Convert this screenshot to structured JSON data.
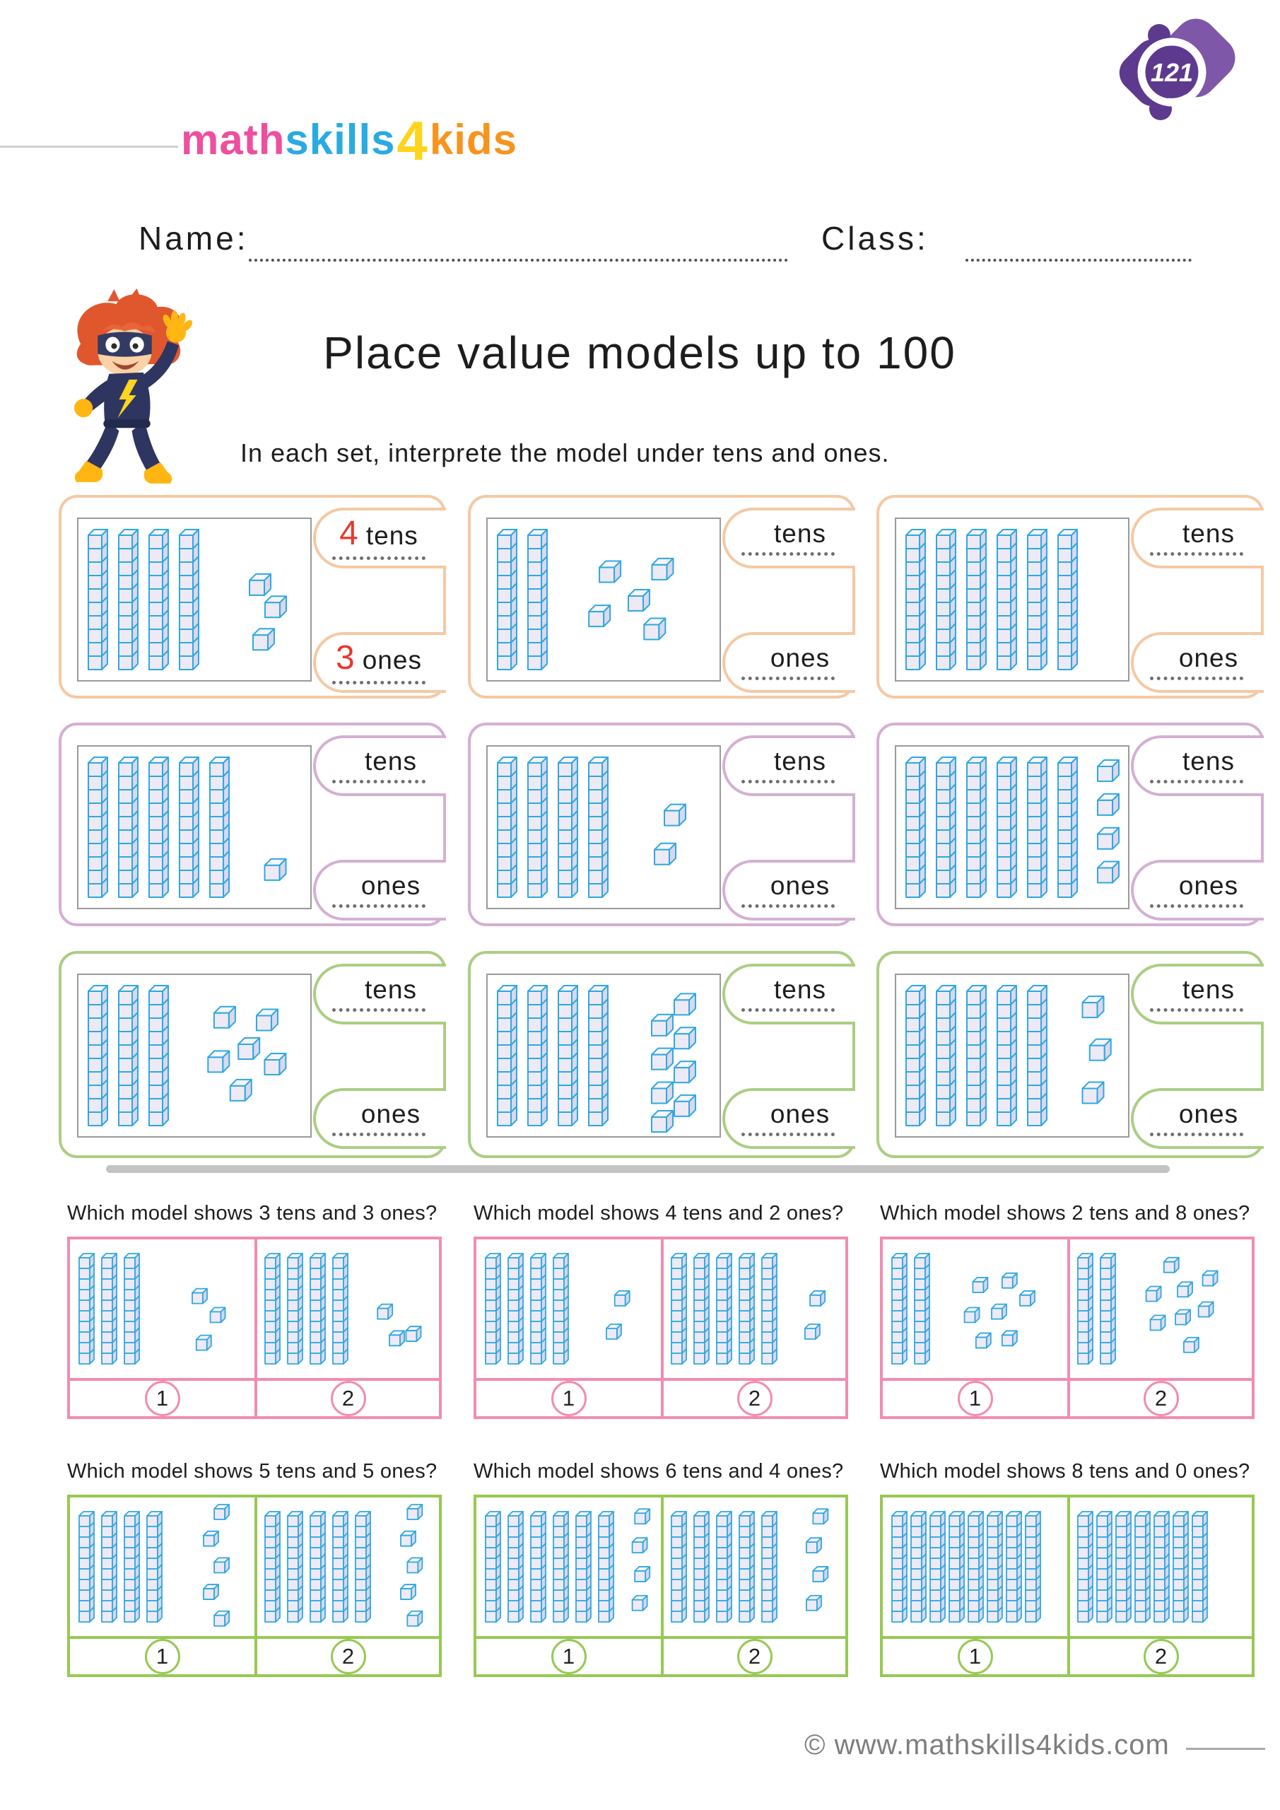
{
  "page": {
    "number": "121"
  },
  "colors": {
    "peach": "#f4c9a3",
    "lilac": "#d4afd3",
    "green_box": "#abce83",
    "pink": "#f28cb1",
    "green_q": "#96c953",
    "rod_stroke": "#2fa8e0",
    "rod_front": "#edeaf6",
    "rod_top": "#f7f5fd",
    "rod_side": "#dbd7ec",
    "answer_red": "#e5392f",
    "divider": "#c3c3c3",
    "footer_gray": "#7e7e7e",
    "badge_dark": "#5d3a8e",
    "badge_light": "#7e57a8"
  },
  "logo": {
    "parts": [
      {
        "text": "math",
        "color": "#ee4f9e"
      },
      {
        "text": "skills",
        "color": "#29abe2"
      },
      {
        "text": "4",
        "color": "#ffd41f"
      },
      {
        "text": "kids",
        "color": "#f7941e"
      }
    ]
  },
  "fields": {
    "name_label": "Name:",
    "class_label": "Class:"
  },
  "header": {
    "title": "Place value models up to 100",
    "instruction": "In each set, interprete the model under tens and ones."
  },
  "labels": {
    "tens": "tens",
    "ones": "ones"
  },
  "exercises": [
    {
      "tens": 4,
      "ones": 3,
      "tens_answer": "4",
      "ones_answer": "3",
      "color": "peach",
      "ones_layout": "diag3"
    },
    {
      "tens": 2,
      "ones": 5,
      "tens_answer": "",
      "ones_answer": "",
      "color": "peach",
      "ones_layout": "scatter5"
    },
    {
      "tens": 6,
      "ones": 0,
      "tens_answer": "",
      "ones_answer": "",
      "color": "peach",
      "ones_layout": "none"
    },
    {
      "tens": 5,
      "ones": 1,
      "tens_answer": "",
      "ones_answer": "",
      "color": "lilac",
      "ones_layout": "one1"
    },
    {
      "tens": 4,
      "ones": 2,
      "tens_answer": "",
      "ones_answer": "",
      "color": "lilac",
      "ones_layout": "col2"
    },
    {
      "tens": 6,
      "ones": 4,
      "tens_answer": "",
      "ones_answer": "",
      "color": "lilac",
      "ones_layout": "col4"
    },
    {
      "tens": 3,
      "ones": 6,
      "tens_answer": "",
      "ones_answer": "",
      "color": "green_box",
      "ones_layout": "scatter6"
    },
    {
      "tens": 4,
      "ones": 8,
      "tens_answer": "",
      "ones_answer": "",
      "color": "green_box",
      "ones_layout": "grid8"
    },
    {
      "tens": 5,
      "ones": 3,
      "tens_answer": "",
      "ones_answer": "",
      "color": "green_box",
      "ones_layout": "col3"
    }
  ],
  "questions": [
    {
      "prompt": "Which model shows 3 tens and 3 ones?",
      "color": "pink",
      "choices": [
        "1",
        "2"
      ],
      "models": [
        {
          "tens": 3,
          "ones": 3,
          "ones_layout": "diag3"
        },
        {
          "tens": 4,
          "ones": 3,
          "ones_layout": "tri3"
        }
      ]
    },
    {
      "prompt": "Which model shows 4 tens and 2 ones?",
      "color": "pink",
      "choices": [
        "1",
        "2"
      ],
      "models": [
        {
          "tens": 4,
          "ones": 2,
          "ones_layout": "col2"
        },
        {
          "tens": 5,
          "ones": 2,
          "ones_layout": "col2"
        }
      ]
    },
    {
      "prompt": "Which model shows 2 tens and 8 ones?",
      "color": "pink",
      "choices": [
        "1",
        "2"
      ],
      "models": [
        {
          "tens": 2,
          "ones": 7,
          "ones_layout": "scatter7"
        },
        {
          "tens": 2,
          "ones": 8,
          "ones_layout": "scatter8"
        }
      ]
    },
    {
      "prompt": "Which model shows 5 tens and 5 ones?",
      "color": "green_q",
      "choices": [
        "1",
        "2"
      ],
      "models": [
        {
          "tens": 4,
          "ones": 5,
          "ones_layout": "col5"
        },
        {
          "tens": 5,
          "ones": 5,
          "ones_layout": "col5"
        }
      ]
    },
    {
      "prompt": "Which model shows 6 tens and 4 ones?",
      "color": "green_q",
      "choices": [
        "1",
        "2"
      ],
      "models": [
        {
          "tens": 6,
          "ones": 4,
          "ones_layout": "zig4"
        },
        {
          "tens": 5,
          "ones": 4,
          "ones_layout": "zig4"
        }
      ]
    },
    {
      "prompt": "Which model shows 8 tens and 0 ones?",
      "color": "green_q",
      "choices": [
        "1",
        "2"
      ],
      "models": [
        {
          "tens": 8,
          "ones": 0,
          "ones_layout": "none"
        },
        {
          "tens": 7,
          "ones": 0,
          "ones_layout": "none"
        }
      ]
    }
  ],
  "footer": {
    "copyright": "© www.mathskills4kids.com"
  }
}
